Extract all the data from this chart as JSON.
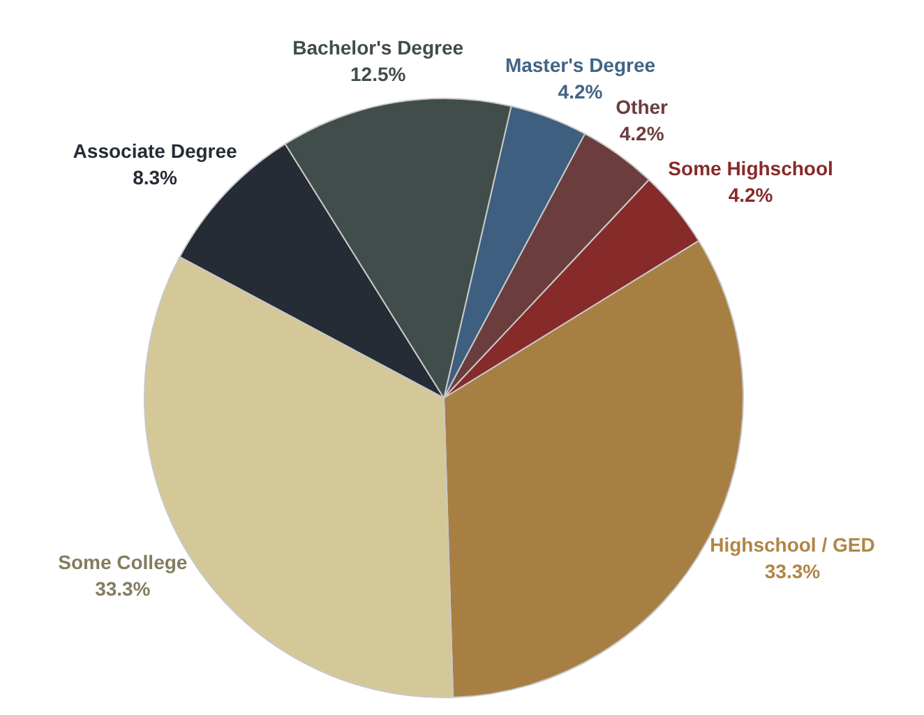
{
  "chart_data": {
    "type": "pie",
    "categories": [
      "Master's Degree",
      "Other",
      "Some Highschool",
      "Highschool / GED",
      "Some College",
      "Associate Degree",
      "Bachelor's Degree"
    ],
    "values": [
      4.2,
      4.2,
      4.2,
      33.3,
      33.3,
      8.3,
      12.5
    ],
    "value_labels": [
      "4.2%",
      "4.2%",
      "4.2%",
      "33.3%",
      "33.3%",
      "8.3%",
      "12.5%"
    ],
    "colors": [
      "#3e5f7f",
      "#6b3d3d",
      "#862a2a",
      "#a87f43",
      "#d4c898",
      "#262c35",
      "#404d4a"
    ],
    "legend": false
  }
}
